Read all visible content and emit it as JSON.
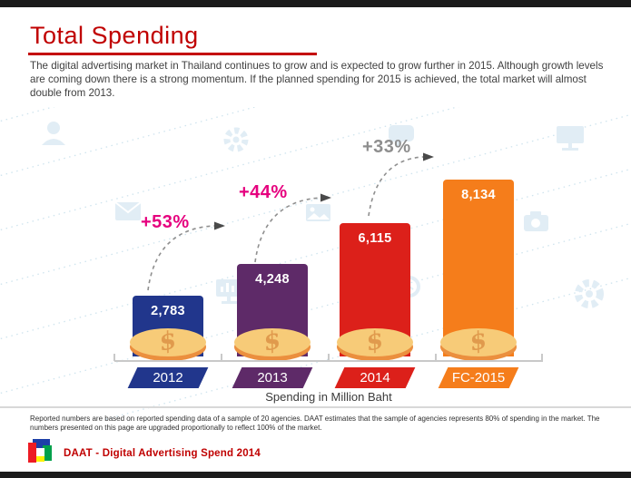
{
  "header": {
    "title": "Total Spending",
    "intro": "The digital advertising market in Thailand continues to grow and is expected to grow further in 2015. Although growth levels are coming down there is a strong momentum. If the planned spending for 2015 is achieved, the total market will almost double from 2013."
  },
  "chart_data": {
    "type": "bar",
    "title": "Total Spending",
    "categories": [
      "2012",
      "2013",
      "2014",
      "FC-2015"
    ],
    "values": [
      2783,
      4248,
      6115,
      8134
    ],
    "value_labels": [
      "2,783",
      "4,248",
      "6,115",
      "8,134"
    ],
    "bar_colors": [
      "#21368c",
      "#5e2a68",
      "#dc201a",
      "#f57d1b"
    ],
    "growth_annotations": [
      {
        "label": "+53%",
        "from": "2012",
        "to": "2013",
        "color": "#e6007e"
      },
      {
        "label": "+44%",
        "from": "2013",
        "to": "2014",
        "color": "#e6007e"
      },
      {
        "label": "+33%",
        "from": "2014",
        "to": "FC-2015",
        "color": "#8e8e8e"
      }
    ],
    "xlabel": "Spending in Million Baht",
    "ylim": [
      0,
      8500
    ],
    "grid": false,
    "legend": false,
    "icon": "dollar-coin"
  },
  "footnote": "Reported numbers are based on reported spending data of a sample of 20 agencies. DAAT estimates that the sample of agencies represents 80% of spending in the market. The numbers presented on this page are upgraded proportionally to reflect 100% of the market.",
  "footer": {
    "brand": "DAAT - Digital Advertising Spend 2014"
  }
}
